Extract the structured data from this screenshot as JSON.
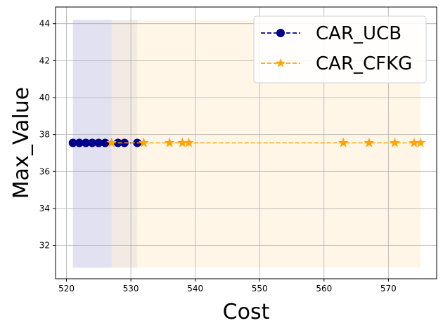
{
  "chart_data": {
    "type": "line",
    "title": "",
    "xlabel": "Cost",
    "ylabel": "Max_Value",
    "xlim": [
      518.3,
      577.5
    ],
    "ylim": [
      30.2,
      44.9
    ],
    "xticks": [
      520,
      530,
      540,
      550,
      560,
      570
    ],
    "yticks": [
      32,
      34,
      36,
      38,
      40,
      42,
      44
    ],
    "grid": true,
    "legend_position": "top-right",
    "series": [
      {
        "name": "CAR_UCB",
        "color": "#00008b",
        "marker": "circle",
        "line_style": "dashed",
        "x": [
          521,
          522,
          523,
          524,
          525,
          526,
          528,
          529,
          531
        ],
        "y": [
          37.55,
          37.55,
          37.55,
          37.55,
          37.55,
          37.55,
          37.55,
          37.55,
          37.55
        ],
        "band": {
          "x": [
            521,
            531
          ],
          "y": [
            30.8,
            44.2
          ],
          "color": "#c9c9e8"
        }
      },
      {
        "name": "CAR_CFKG",
        "color": "#ffa500",
        "marker": "star",
        "line_style": "dashed",
        "x": [
          527,
          532,
          536,
          538,
          539,
          563,
          567,
          571,
          574,
          575
        ],
        "y": [
          37.55,
          37.55,
          37.55,
          37.55,
          37.55,
          37.55,
          37.55,
          37.55,
          37.55,
          37.55
        ],
        "band": {
          "x": [
            527,
            575
          ],
          "y": [
            30.8,
            44.2
          ],
          "color": "#fff0d8"
        }
      }
    ]
  }
}
